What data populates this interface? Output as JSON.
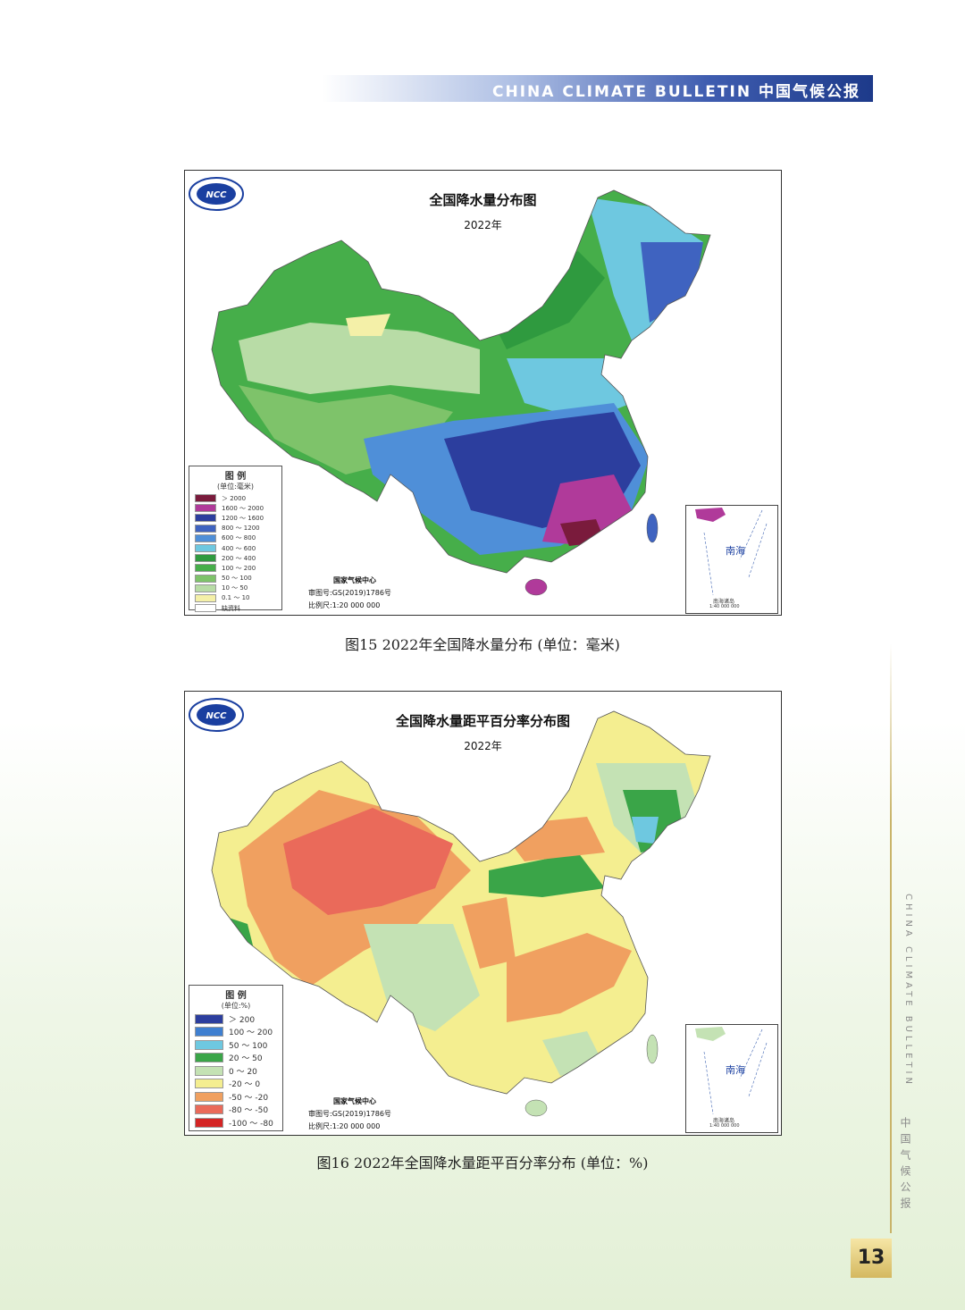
{
  "header": {
    "text": "CHINA CLIMATE BULLETIN  中国气候公报"
  },
  "map1": {
    "title": "全国降水量分布图",
    "year": "2022年",
    "legend_title": "图 例",
    "legend_unit": "(单位:毫米)",
    "legend": [
      {
        "label": "＞ 2000",
        "color": "#7a1b3c"
      },
      {
        "label": "1600 ～ 2000",
        "color": "#b03a9a"
      },
      {
        "label": "1200 ～ 1600",
        "color": "#2c3e9e"
      },
      {
        "label": "800 ～ 1200",
        "color": "#3f63c0"
      },
      {
        "label": "600 ～ 800",
        "color": "#4f8fd8"
      },
      {
        "label": "400 ～ 600",
        "color": "#6ec8e0"
      },
      {
        "label": "200 ～ 400",
        "color": "#2f9a3f"
      },
      {
        "label": "100 ～ 200",
        "color": "#46ae4a"
      },
      {
        "label": "50 ～ 100",
        "color": "#7ec36a"
      },
      {
        "label": "10 ～ 50",
        "color": "#b8dca6"
      },
      {
        "label": "0.1 ～ 10",
        "color": "#f4f0a8"
      },
      {
        "label": "缺资料",
        "color": "#ffffff"
      }
    ],
    "credit_org": "国家气候中心",
    "credit_review": "审图号:GS(2019)1786号",
    "credit_scale": "比例尺:1:20 000 000",
    "inset_sea": "南海",
    "inset_islands": "南海诸岛",
    "inset_scale": "1:40 000 000"
  },
  "caption1": "图15 2022年全国降水量分布 (单位：毫米)",
  "map2": {
    "title": "全国降水量距平百分率分布图",
    "year": "2022年",
    "legend_title": "图 例",
    "legend_unit": "(单位:%)",
    "legend": [
      {
        "label": "＞ 200",
        "color": "#2c3e9e"
      },
      {
        "label": "100 ～ 200",
        "color": "#3f7fd0"
      },
      {
        "label": "50 ～ 100",
        "color": "#6ec8e0"
      },
      {
        "label": "20 ～ 50",
        "color": "#3aa548"
      },
      {
        "label": "0 ～ 20",
        "color": "#c4e2b4"
      },
      {
        "label": "-20 ～ 0",
        "color": "#f4ee90"
      },
      {
        "label": "-50 ～ -20",
        "color": "#f0a060"
      },
      {
        "label": "-80 ～ -50",
        "color": "#ea6a5a"
      },
      {
        "label": "-100 ～ -80",
        "color": "#d42424"
      }
    ],
    "credit_org": "国家气候中心",
    "credit_review": "审图号:GS(2019)1786号",
    "credit_scale": "比例尺:1:20 000 000",
    "inset_sea": "南海",
    "inset_islands": "南海诸岛",
    "inset_scale": "1:40 000 000"
  },
  "caption2": "图16 2022年全国降水量距平百分率分布 (单位：%)",
  "side_en": "CHINA CLIMATE BULLETIN",
  "side_cn": "中国气候公报",
  "page_number": "13"
}
